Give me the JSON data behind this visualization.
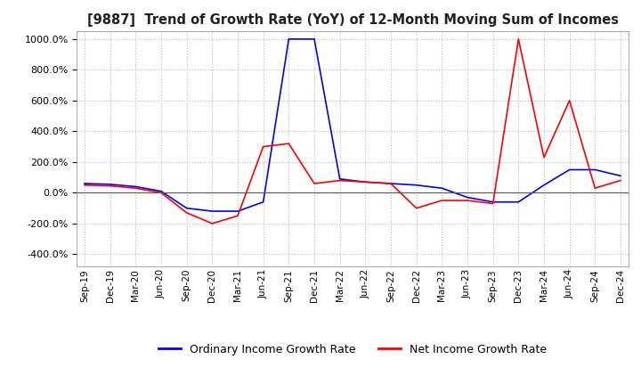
{
  "title": "[9887]  Trend of Growth Rate (YoY) of 12-Month Moving Sum of Incomes",
  "ylim": [
    -480,
    1050
  ],
  "yticks": [
    -400,
    -200,
    0,
    200,
    400,
    600,
    800,
    1000
  ],
  "legend": [
    "Ordinary Income Growth Rate",
    "Net Income Growth Rate"
  ],
  "colors": [
    "blue",
    "red"
  ],
  "background_color": "#ffffff",
  "grid_color": "#bbbbbb",
  "dates": [
    "Sep-19",
    "Dec-19",
    "Mar-20",
    "Jun-20",
    "Sep-20",
    "Dec-20",
    "Mar-21",
    "Jun-21",
    "Sep-21",
    "Dec-21",
    "Mar-22",
    "Jun-22",
    "Sep-22",
    "Dec-22",
    "Mar-23",
    "Jun-23",
    "Sep-23",
    "Dec-23",
    "Mar-24",
    "Jun-24",
    "Sep-24",
    "Dec-24"
  ],
  "ordinary_income": [
    60,
    55,
    40,
    10,
    -100,
    -120,
    -120,
    -60,
    1000,
    1000,
    90,
    70,
    60,
    50,
    30,
    -30,
    -60,
    -60,
    50,
    150,
    150,
    110
  ],
  "net_income": [
    50,
    45,
    30,
    0,
    -130,
    -200,
    -150,
    300,
    320,
    60,
    80,
    70,
    60,
    -100,
    -50,
    -50,
    -70,
    1000,
    230,
    600,
    30,
    80
  ]
}
